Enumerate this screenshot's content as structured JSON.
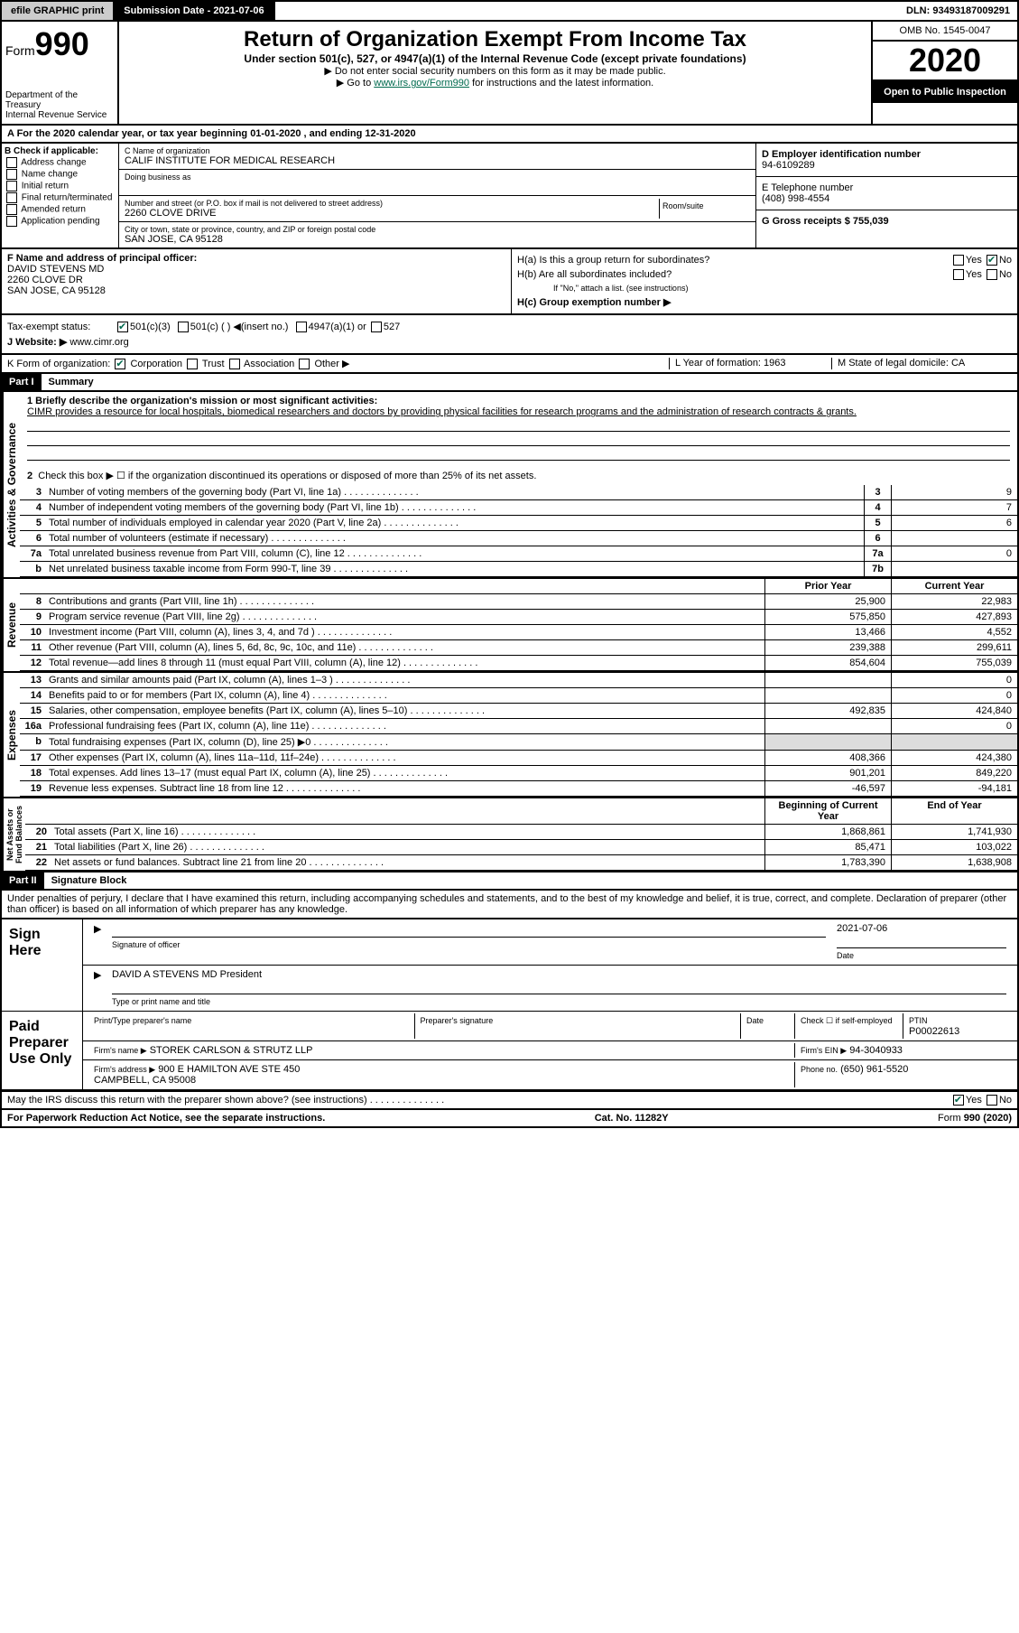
{
  "header": {
    "efile_label": "efile GRAPHIC print",
    "submission_label": "Submission Date - 2021-07-06",
    "dln": "DLN: 93493187009291"
  },
  "form": {
    "form_label": "Form",
    "form_number": "990",
    "title": "Return of Organization Exempt From Income Tax",
    "subtitle": "Under section 501(c), 527, or 4947(a)(1) of the Internal Revenue Code (except private foundations)",
    "note1": "▶ Do not enter social security numbers on this form as it may be made public.",
    "note2_prefix": "▶ Go to ",
    "note2_link": "www.irs.gov/Form990",
    "note2_suffix": " for instructions and the latest information.",
    "dept": "Department of the Treasury\nInternal Revenue Service",
    "omb": "OMB No. 1545-0047",
    "year": "2020",
    "open_public": "Open to Public Inspection"
  },
  "line_a": "A For the 2020 calendar year, or tax year beginning 01-01-2020   , and ending 12-31-2020",
  "section_b": {
    "header": "B Check if applicable:",
    "opts": [
      "Address change",
      "Name change",
      "Initial return",
      "Final return/terminated",
      "Amended return",
      "Application pending"
    ]
  },
  "section_c": {
    "name_label": "C Name of organization",
    "name": "CALIF INSTITUTE FOR MEDICAL RESEARCH",
    "dba_label": "Doing business as",
    "addr_label": "Number and street (or P.O. box if mail is not delivered to street address)",
    "room_label": "Room/suite",
    "addr": "2260 CLOVE DRIVE",
    "city_label": "City or town, state or province, country, and ZIP or foreign postal code",
    "city": "SAN JOSE, CA  95128"
  },
  "section_d": {
    "label": "D Employer identification number",
    "value": "94-6109289"
  },
  "section_e": {
    "label": "E Telephone number",
    "value": "(408) 998-4554"
  },
  "section_g": {
    "label": "G Gross receipts $ 755,039"
  },
  "section_f": {
    "label": "F  Name and address of principal officer:",
    "name": "DAVID STEVENS MD",
    "addr": "2260 CLOVE DR",
    "city": "SAN JOSE, CA  95128"
  },
  "section_h": {
    "a_label": "H(a)  Is this a group return for subordinates?",
    "b_label": "H(b)  Are all subordinates included?",
    "note": "If \"No,\" attach a list. (see instructions)",
    "c_label": "H(c)  Group exemption number ▶"
  },
  "tax_exempt": {
    "label": "Tax-exempt status:",
    "o1": "501(c)(3)",
    "o2": "501(c) (  ) ◀(insert no.)",
    "o3": "4947(a)(1) or",
    "o4": "527"
  },
  "section_j": {
    "label": "J   Website: ▶",
    "value": "www.cimr.org"
  },
  "section_k": {
    "label": "K Form of organization:",
    "opts": [
      "Corporation",
      "Trust",
      "Association",
      "Other ▶"
    ]
  },
  "section_l": {
    "label": "L Year of formation: 1963"
  },
  "section_m": {
    "label": "M State of legal domicile: CA"
  },
  "part1": {
    "header": "Part I",
    "title": "Summary",
    "q1_label": "1  Briefly describe the organization's mission or most significant activities:",
    "q1_text": "CIMR provides a resource for local hospitals, biomedical researchers and doctors by providing physical facilities for research programs and the administration of research contracts & grants.",
    "q2": "Check this box ▶ ☐  if the organization discontinued its operations or disposed of more than 25% of its net assets.",
    "lines_gov": [
      {
        "n": "3",
        "d": "Number of voting members of the governing body (Part VI, line 1a)",
        "b": "3",
        "v": "9"
      },
      {
        "n": "4",
        "d": "Number of independent voting members of the governing body (Part VI, line 1b)",
        "b": "4",
        "v": "7"
      },
      {
        "n": "5",
        "d": "Total number of individuals employed in calendar year 2020 (Part V, line 2a)",
        "b": "5",
        "v": "6"
      },
      {
        "n": "6",
        "d": "Total number of volunteers (estimate if necessary)",
        "b": "6",
        "v": ""
      },
      {
        "n": "7a",
        "d": "Total unrelated business revenue from Part VIII, column (C), line 12",
        "b": "7a",
        "v": "0"
      },
      {
        "n": "b",
        "d": "Net unrelated business taxable income from Form 990-T, line 39",
        "b": "7b",
        "v": ""
      }
    ],
    "prior_label": "Prior Year",
    "current_label": "Current Year",
    "revenue": [
      {
        "n": "8",
        "d": "Contributions and grants (Part VIII, line 1h)",
        "p": "25,900",
        "c": "22,983"
      },
      {
        "n": "9",
        "d": "Program service revenue (Part VIII, line 2g)",
        "p": "575,850",
        "c": "427,893"
      },
      {
        "n": "10",
        "d": "Investment income (Part VIII, column (A), lines 3, 4, and 7d )",
        "p": "13,466",
        "c": "4,552"
      },
      {
        "n": "11",
        "d": "Other revenue (Part VIII, column (A), lines 5, 6d, 8c, 9c, 10c, and 11e)",
        "p": "239,388",
        "c": "299,611"
      },
      {
        "n": "12",
        "d": "Total revenue—add lines 8 through 11 (must equal Part VIII, column (A), line 12)",
        "p": "854,604",
        "c": "755,039"
      }
    ],
    "expenses": [
      {
        "n": "13",
        "d": "Grants and similar amounts paid (Part IX, column (A), lines 1–3 )",
        "p": "",
        "c": "0"
      },
      {
        "n": "14",
        "d": "Benefits paid to or for members (Part IX, column (A), line 4)",
        "p": "",
        "c": "0"
      },
      {
        "n": "15",
        "d": "Salaries, other compensation, employee benefits (Part IX, column (A), lines 5–10)",
        "p": "492,835",
        "c": "424,840"
      },
      {
        "n": "16a",
        "d": "Professional fundraising fees (Part IX, column (A), line 11e)",
        "p": "",
        "c": "0"
      },
      {
        "n": "b",
        "d": "Total fundraising expenses (Part IX, column (D), line 25) ▶0",
        "p": "shade",
        "c": "shade"
      },
      {
        "n": "17",
        "d": "Other expenses (Part IX, column (A), lines 11a–11d, 11f–24e)",
        "p": "408,366",
        "c": "424,380"
      },
      {
        "n": "18",
        "d": "Total expenses. Add lines 13–17 (must equal Part IX, column (A), line 25)",
        "p": "901,201",
        "c": "849,220"
      },
      {
        "n": "19",
        "d": "Revenue less expenses. Subtract line 18 from line 12",
        "p": "-46,597",
        "c": "-94,181"
      }
    ],
    "begin_label": "Beginning of Current Year",
    "end_label": "End of Year",
    "netassets": [
      {
        "n": "20",
        "d": "Total assets (Part X, line 16)",
        "p": "1,868,861",
        "c": "1,741,930"
      },
      {
        "n": "21",
        "d": "Total liabilities (Part X, line 26)",
        "p": "85,471",
        "c": "103,022"
      },
      {
        "n": "22",
        "d": "Net assets or fund balances. Subtract line 21 from line 20",
        "p": "1,783,390",
        "c": "1,638,908"
      }
    ]
  },
  "part2": {
    "header": "Part II",
    "title": "Signature Block",
    "decl": "Under penalties of perjury, I declare that I have examined this return, including accompanying schedules and statements, and to the best of my knowledge and belief, it is true, correct, and complete. Declaration of preparer (other than officer) is based on all information of which preparer has any knowledge.",
    "sign_here": "Sign Here",
    "sig_officer": "Signature of officer",
    "date_label": "Date",
    "date_val": "2021-07-06",
    "name_title": "DAVID A STEVENS MD President",
    "type_label": "Type or print name and title",
    "paid_prep": "Paid Preparer Use Only",
    "prep_name_label": "Print/Type preparer's name",
    "prep_sig_label": "Preparer's signature",
    "check_self": "Check ☐ if self-employed",
    "ptin_label": "PTIN",
    "ptin": "P00022613",
    "firm_name_label": "Firm's name    ▶",
    "firm_name": "STOREK CARLSON & STRUTZ LLP",
    "firm_ein_label": "Firm's EIN ▶",
    "firm_ein": "94-3040933",
    "firm_addr_label": "Firm's address ▶",
    "firm_addr": "900 E HAMILTON AVE STE 450",
    "firm_city": "CAMPBELL, CA  95008",
    "phone_label": "Phone no.",
    "phone": "(650) 961-5520",
    "discuss": "May the IRS discuss this return with the preparer shown above? (see instructions)"
  },
  "footer": {
    "paperwork": "For Paperwork Reduction Act Notice, see the separate instructions.",
    "cat": "Cat. No. 11282Y",
    "form": "Form 990 (2020)"
  }
}
